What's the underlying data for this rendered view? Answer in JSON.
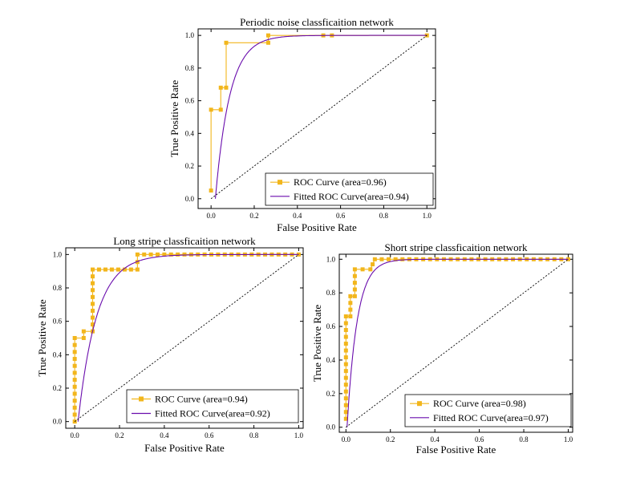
{
  "figure": {
    "colors": {
      "roc": "#F2B61C",
      "fitted": "#6A0DAD",
      "diagonal": "#000000",
      "axis": "#000000"
    },
    "icons": {
      "roc_marker": "square-marker-icon"
    }
  },
  "chart_data": [
    {
      "type": "line",
      "title": "Periodic noise classficaition network",
      "xlabel": "False Positive Rate",
      "ylabel": "True Positive Rate",
      "xlim": [
        -0.06,
        1.04
      ],
      "ylim": [
        -0.06,
        1.04
      ],
      "xticks": [
        "0.0",
        "0.2",
        "0.4",
        "0.6",
        "0.8",
        "1.0"
      ],
      "yticks": [
        "0.0",
        "0.2",
        "0.4",
        "0.6",
        "0.8",
        "1.0"
      ],
      "legend_position": "bottom-right",
      "series": [
        {
          "name": "ROC Curve (area=0.96)",
          "style": "step-markers",
          "points": [
            [
              0.0,
              0.05
            ],
            [
              0.0,
              0.545
            ],
            [
              0.045,
              0.545
            ],
            [
              0.045,
              0.68
            ],
            [
              0.07,
              0.68
            ],
            [
              0.07,
              0.955
            ],
            [
              0.265,
              0.955
            ],
            [
              0.265,
              1.0
            ],
            [
              0.52,
              1.0
            ],
            [
              0.56,
              1.0
            ],
            [
              1.0,
              1.0
            ]
          ]
        },
        {
          "name": "Fitted ROC Curve(area=0.94)",
          "style": "smooth",
          "fit_start": 0.02,
          "fit_k": 15
        },
        {
          "name": "",
          "style": "diagonal"
        }
      ]
    },
    {
      "type": "line",
      "title": "Long stripe classficaition network",
      "xlabel": "False Positive Rate",
      "ylabel": "True Positive Rate",
      "xlim": [
        -0.04,
        1.02
      ],
      "ylim": [
        -0.04,
        1.04
      ],
      "xticks": [
        "0.0",
        "0.2",
        "0.4",
        "0.6",
        "0.8",
        "1.0"
      ],
      "yticks": [
        "0.0",
        "0.2",
        "0.4",
        "0.6",
        "0.8",
        "1.0"
      ],
      "legend_position": "bottom-right",
      "series": [
        {
          "name": "ROC Curve (area=0.94)",
          "style": "dense-markers",
          "points": [
            [
              0.0,
              0.0
            ],
            [
              0.0,
              0.5
            ],
            [
              0.04,
              0.5
            ],
            [
              0.04,
              0.54
            ],
            [
              0.08,
              0.54
            ],
            [
              0.08,
              0.91
            ],
            [
              0.28,
              0.91
            ],
            [
              0.28,
              1.0
            ],
            [
              1.0,
              1.0
            ]
          ]
        },
        {
          "name": "Fitted ROC Curve(area=0.92)",
          "style": "smooth",
          "fit_start": 0.015,
          "fit_k": 12
        },
        {
          "name": "",
          "style": "diagonal"
        }
      ]
    },
    {
      "type": "line",
      "title": "Short stripe classficaition network",
      "xlabel": "False Positive Rate",
      "ylabel": "True Positive Rate",
      "xlim": [
        -0.03,
        1.02
      ],
      "ylim": [
        -0.03,
        1.03
      ],
      "xticks": [
        "0.0",
        "0.2",
        "0.4",
        "0.6",
        "0.8",
        "1.0"
      ],
      "yticks": [
        "0.0",
        "0.2",
        "0.4",
        "0.6",
        "0.8",
        "1.0"
      ],
      "legend_position": "bottom-right",
      "series": [
        {
          "name": "ROC Curve (area=0.98)",
          "style": "dense-markers",
          "points": [
            [
              0.0,
              0.05
            ],
            [
              0.0,
              0.66
            ],
            [
              0.02,
              0.66
            ],
            [
              0.02,
              0.78
            ],
            [
              0.04,
              0.78
            ],
            [
              0.04,
              0.94
            ],
            [
              0.11,
              0.94
            ],
            [
              0.13,
              1.0
            ],
            [
              1.0,
              1.0
            ]
          ]
        },
        {
          "name": "Fitted ROC Curve(area=0.97)",
          "style": "smooth",
          "fit_start": 0.005,
          "fit_k": 22
        },
        {
          "name": "",
          "style": "diagonal"
        }
      ]
    }
  ]
}
